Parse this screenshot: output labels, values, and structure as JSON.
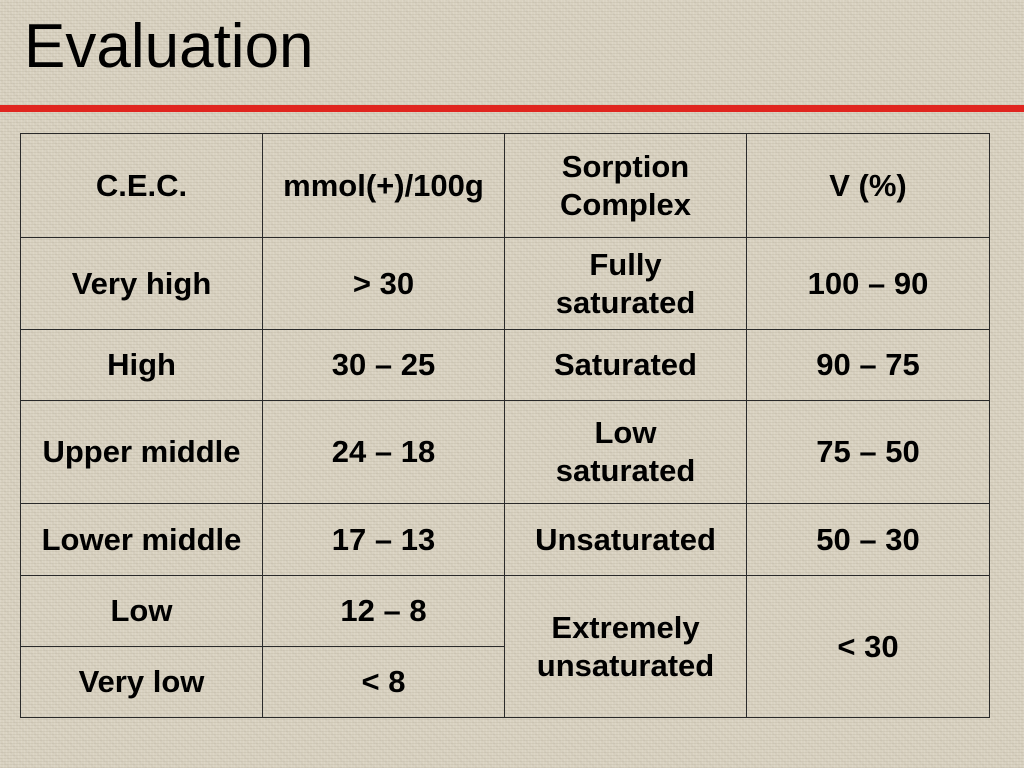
{
  "slide": {
    "title": "Evaluation",
    "accent_color": "#e0251f"
  },
  "table": {
    "headers": [
      "C.E.C.",
      "mmol(+)/100g",
      "Sorption Complex",
      "V (%)"
    ],
    "rows": [
      {
        "cec": "Very high",
        "mmol": "> 30",
        "sorption": "Fully saturated",
        "v": "100 – 90"
      },
      {
        "cec": "High",
        "mmol": "30 – 25",
        "sorption": "Saturated",
        "v": "90 – 75"
      },
      {
        "cec": "Upper middle",
        "mmol": "24 – 18",
        "sorption": "Low saturated",
        "v": "75 – 50"
      },
      {
        "cec": "Lower middle",
        "mmol": "17 – 13",
        "sorption": "Unsaturated",
        "v": "50 – 30"
      },
      {
        "cec": "Low",
        "mmol": "12 – 8",
        "sorption": "Extremely unsaturated",
        "v": "<  30"
      },
      {
        "cec": "Very low",
        "mmol": "<  8"
      }
    ]
  }
}
